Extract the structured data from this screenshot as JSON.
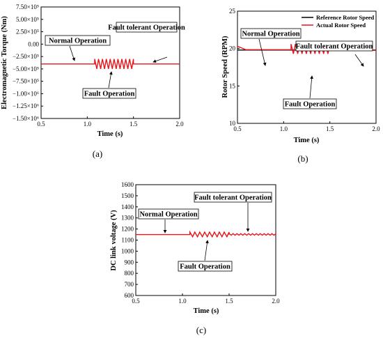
{
  "colors": {
    "actual": "#e8141c",
    "reference": "#000000"
  },
  "charts": [
    {
      "panel_label": "(a)",
      "chart_data": {
        "type": "line",
        "title": "",
        "xlabel": "Time (s)",
        "ylabel": "Electromagnetic Torque (Nm)",
        "xlim": [
          0.5,
          2.0
        ],
        "ylim": [
          -1500000,
          750000
        ],
        "xticks": [
          "0.5",
          "1.0",
          "1.5",
          "2.0"
        ],
        "yticks": [
          "7.50×10⁵",
          "5.00×10⁵",
          "2.50×10⁵",
          "0.00",
          "−2.50×10⁵",
          "−5.00×10⁵",
          "−7.50×10⁵",
          "−1.00×10⁶",
          "−1.25×10⁶",
          "−1.50×10⁶"
        ],
        "series": [
          {
            "color": "#e8141c",
            "segments": [
              {
                "from": 0.5,
                "to": 1.08,
                "level": -400000
              },
              {
                "from": 1.08,
                "to": 1.5,
                "level": -400000,
                "oscillation": {
                  "cycles": 10,
                  "low": -500000,
                  "high": -300000
                }
              },
              {
                "from": 1.5,
                "to": 2.0,
                "level": -400000
              }
            ]
          }
        ],
        "annotations": [
          "Normal Operation",
          "Fault Operation",
          "Fault tolerant Operation"
        ]
      }
    },
    {
      "panel_label": "(b)",
      "chart_data": {
        "type": "line",
        "title": "",
        "xlabel": "Time (s)",
        "ylabel": "Rotor Speed (RPM)",
        "xlim": [
          0.5,
          2.0
        ],
        "ylim": [
          10,
          25
        ],
        "xticks": [
          "0.5",
          "1.0",
          "1.5",
          "2.0"
        ],
        "yticks": [
          "25",
          "20",
          "15",
          "10"
        ],
        "legend": {
          "position": "top-right",
          "entries": [
            "Reference Rotor Speed",
            "Actual Rotor Speed"
          ]
        },
        "series": [
          {
            "name": "Reference Rotor Speed",
            "color": "#000000",
            "segments": [
              {
                "from": 0.5,
                "to": 2.0,
                "level": 19.8
              }
            ]
          },
          {
            "name": "Actual Rotor Speed",
            "color": "#e8141c",
            "segments": [
              {
                "from": 0.5,
                "to": 1.08,
                "level": 19.85,
                "start_transient": 20.3
              },
              {
                "from": 1.08,
                "to": 1.5,
                "level": 19.9,
                "oscillation": {
                  "cycles": 9,
                  "low": 19.3,
                  "high": 20.6
                }
              },
              {
                "from": 1.5,
                "to": 2.0,
                "level": 19.75
              }
            ]
          }
        ],
        "annotations": [
          "Normal Operation",
          "Fault Operation",
          "Fault tolerant Operation"
        ]
      }
    },
    {
      "panel_label": "(c)",
      "chart_data": {
        "type": "line",
        "title": "",
        "xlabel": "Time (s)",
        "ylabel": "DC link voltage (V)",
        "xlim": [
          0.5,
          2.0
        ],
        "ylim": [
          600,
          1600
        ],
        "xticks": [
          "0.5",
          "1.0",
          "1.5",
          "2.0"
        ],
        "yticks": [
          "1600",
          "1500",
          "1400",
          "1300",
          "1200",
          "1100",
          "1000",
          "900",
          "800",
          "700",
          "600"
        ],
        "series": [
          {
            "color": "#e8141c",
            "segments": [
              {
                "from": 0.5,
                "to": 1.08,
                "level": 1150
              },
              {
                "from": 1.08,
                "to": 1.5,
                "level": 1150,
                "oscillation": {
                  "cycles": 8,
                  "low": 1130,
                  "high": 1172
                }
              },
              {
                "from": 1.5,
                "to": 2.0,
                "level": 1150,
                "oscillation": {
                  "cycles": 12,
                  "low": 1144,
                  "high": 1158
                }
              }
            ]
          }
        ],
        "annotations": [
          "Normal Operation",
          "Fault Operation",
          "Fault tolerant Operation"
        ]
      }
    }
  ]
}
